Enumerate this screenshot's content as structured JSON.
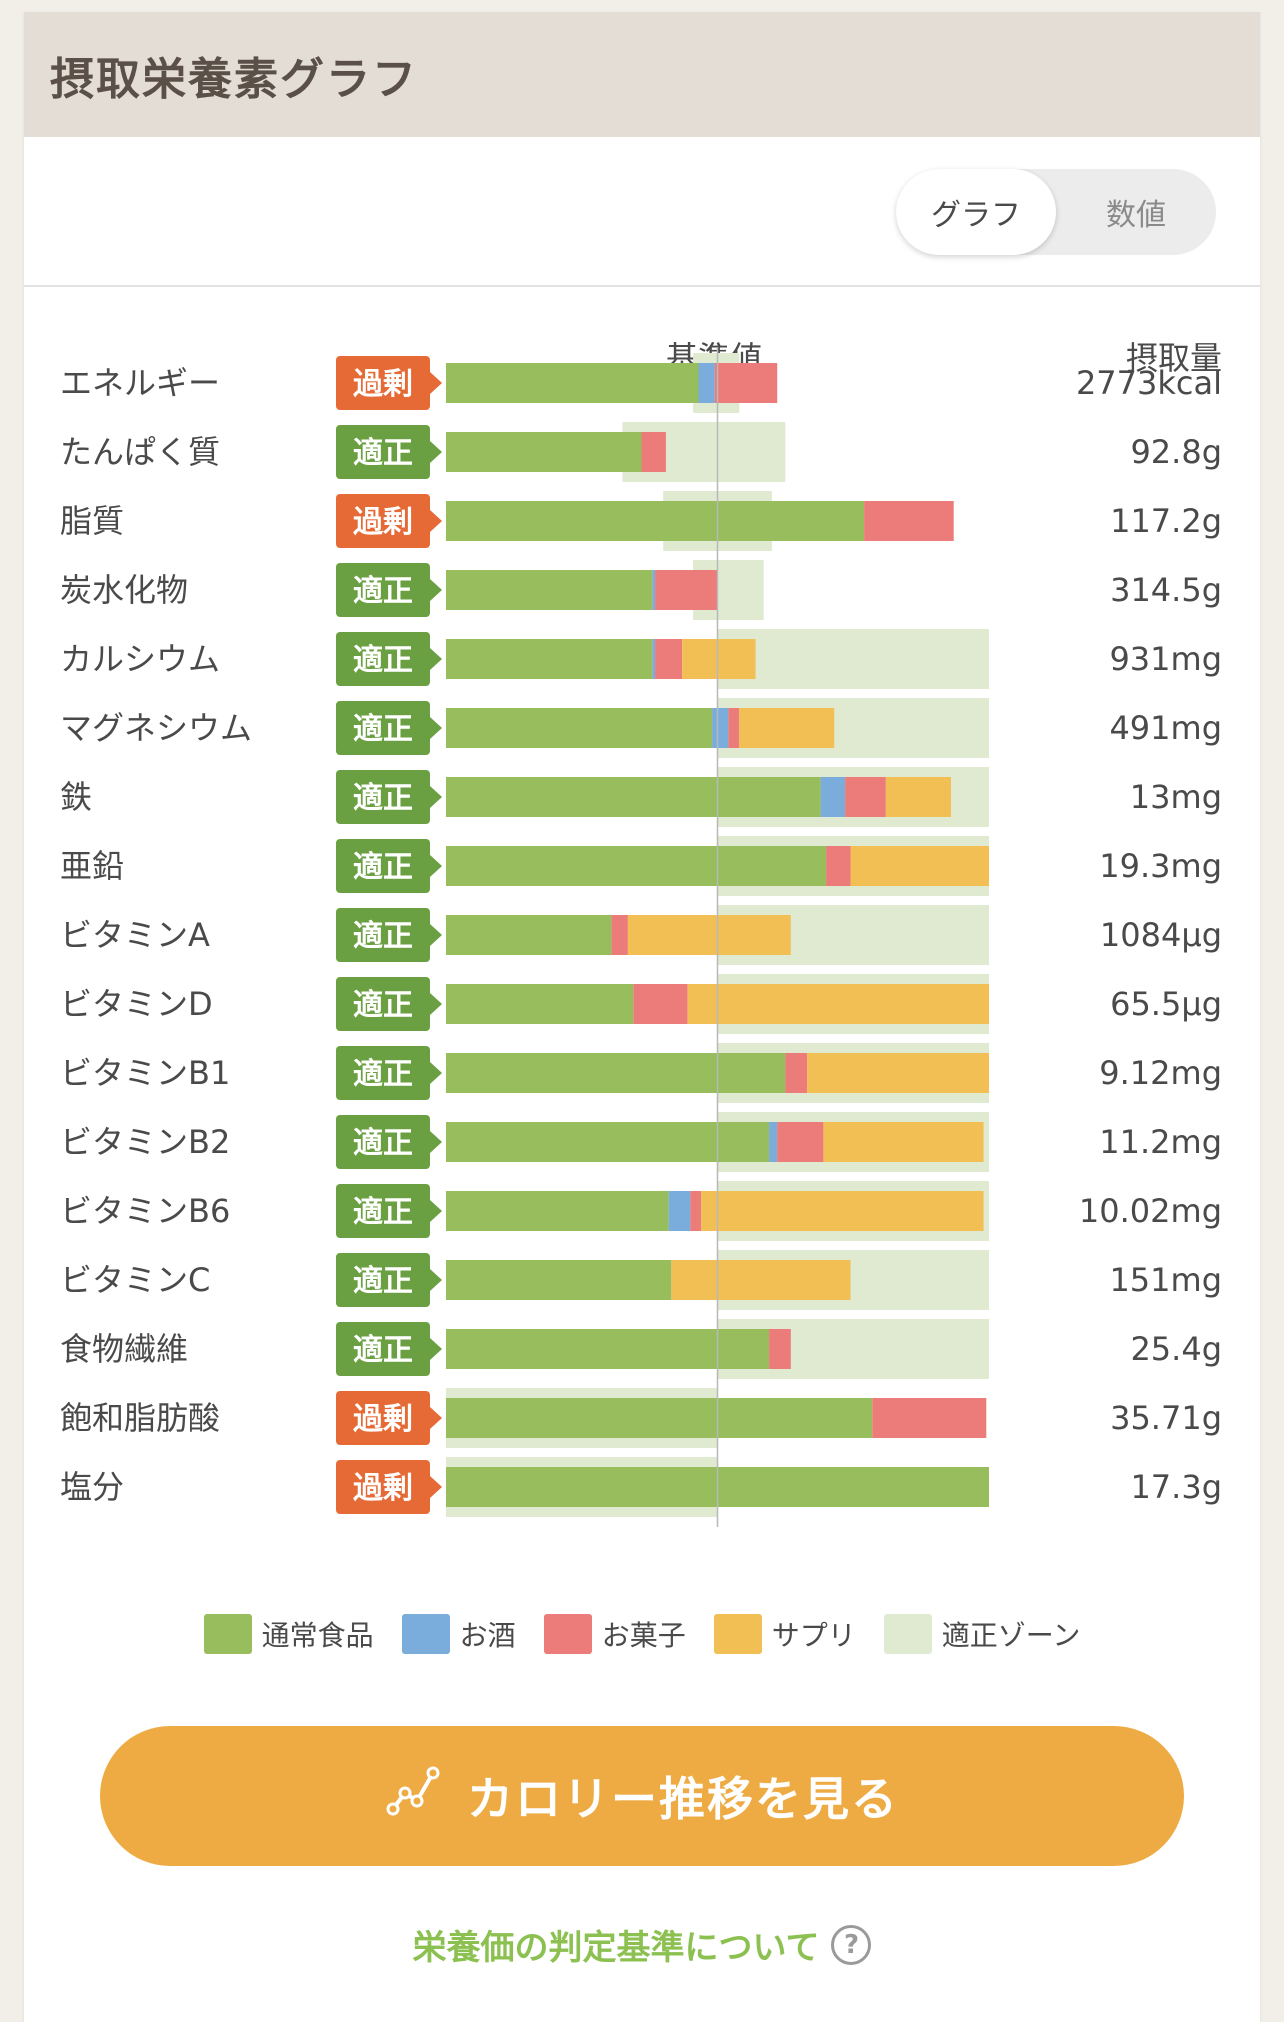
{
  "header": {
    "title": "摂取栄養素グラフ"
  },
  "toggle": {
    "graph_label": "グラフ",
    "number_label": "数値"
  },
  "columns": {
    "reference": "基準値",
    "intake": "摂取量"
  },
  "colors": {
    "normal": "#97bd5c",
    "alcohol": "#7aaddb",
    "snack": "#ec7c79",
    "supplement": "#f2bf54",
    "zone": "#dfead0",
    "excess_badge": "#e66a35",
    "ok_badge": "#6aa042"
  },
  "chart_data": {
    "type": "bar",
    "stacked": true,
    "orientation": "horizontal",
    "unit": "percent of reference value",
    "xlim": [
      0,
      200
    ],
    "reference_line": 100,
    "series_names": [
      "通常食品",
      "お酒",
      "お菓子",
      "サプリ"
    ],
    "rows": [
      {
        "name": "エネルギー",
        "status": "過剰",
        "intake": "2773kcal",
        "zone": [
          91,
          108
        ],
        "values": [
          93,
          6,
          23,
          0
        ]
      },
      {
        "name": "たんぱく質",
        "status": "適正",
        "intake": "92.8g",
        "zone": [
          65,
          125
        ],
        "values": [
          72,
          0,
          9,
          0
        ]
      },
      {
        "name": "脂質",
        "status": "過剰",
        "intake": "117.2g",
        "zone": [
          80,
          120
        ],
        "values": [
          154,
          0,
          33,
          0
        ]
      },
      {
        "name": "炭水化物",
        "status": "適正",
        "intake": "314.5g",
        "zone": [
          91,
          117
        ],
        "values": [
          76,
          1,
          23,
          0
        ]
      },
      {
        "name": "カルシウム",
        "status": "適正",
        "intake": "931mg",
        "zone": [
          100,
          200
        ],
        "values": [
          76,
          1,
          10,
          27
        ]
      },
      {
        "name": "マグネシウム",
        "status": "適正",
        "intake": "491mg",
        "zone": [
          100,
          200
        ],
        "values": [
          98,
          6,
          4,
          35
        ]
      },
      {
        "name": "鉄",
        "status": "適正",
        "intake": "13mg",
        "zone": [
          100,
          200
        ],
        "values": [
          138,
          9,
          15,
          24
        ]
      },
      {
        "name": "亜鉛",
        "status": "適正",
        "intake": "19.3mg",
        "zone": [
          100,
          200
        ],
        "values": [
          140,
          0,
          9,
          51
        ]
      },
      {
        "name": "ビタミンA",
        "status": "適正",
        "intake": "1084µg",
        "zone": [
          100,
          200
        ],
        "values": [
          61,
          0,
          6,
          60
        ]
      },
      {
        "name": "ビタミンD",
        "status": "適正",
        "intake": "65.5µg",
        "zone": [
          100,
          200
        ],
        "values": [
          69,
          0,
          20,
          111
        ]
      },
      {
        "name": "ビタミンB1",
        "status": "適正",
        "intake": "9.12mg",
        "zone": [
          100,
          200
        ],
        "values": [
          125,
          0,
          8,
          67
        ]
      },
      {
        "name": "ビタミンB2",
        "status": "適正",
        "intake": "11.2mg",
        "zone": [
          100,
          200
        ],
        "values": [
          119,
          3,
          17,
          59
        ]
      },
      {
        "name": "ビタミンB6",
        "status": "適正",
        "intake": "10.02mg",
        "zone": [
          100,
          200
        ],
        "values": [
          82,
          8,
          4,
          104
        ]
      },
      {
        "name": "ビタミンC",
        "status": "適正",
        "intake": "151mg",
        "zone": [
          100,
          200
        ],
        "values": [
          83,
          0,
          0,
          66
        ]
      },
      {
        "name": "食物繊維",
        "status": "適正",
        "intake": "25.4g",
        "zone": [
          100,
          200
        ],
        "values": [
          119,
          0,
          8,
          0
        ]
      },
      {
        "name": "飽和脂肪酸",
        "status": "過剰",
        "intake": "35.71g",
        "zone": [
          0,
          100
        ],
        "values": [
          157,
          0,
          42,
          0
        ]
      },
      {
        "name": "塩分",
        "status": "過剰",
        "intake": "17.3g",
        "zone": [
          0,
          100
        ],
        "values": [
          200,
          0,
          0,
          0
        ]
      }
    ]
  },
  "legend": [
    {
      "key": "normal",
      "label": "通常食品"
    },
    {
      "key": "alcohol",
      "label": "お酒"
    },
    {
      "key": "snack",
      "label": "お菓子"
    },
    {
      "key": "supplement",
      "label": "サプリ"
    },
    {
      "key": "zone",
      "label": "適正ゾーン"
    }
  ],
  "cta": {
    "label": "カロリー推移を見る"
  },
  "help": {
    "label": "栄養価の判定基準について",
    "icon_text": "?"
  }
}
